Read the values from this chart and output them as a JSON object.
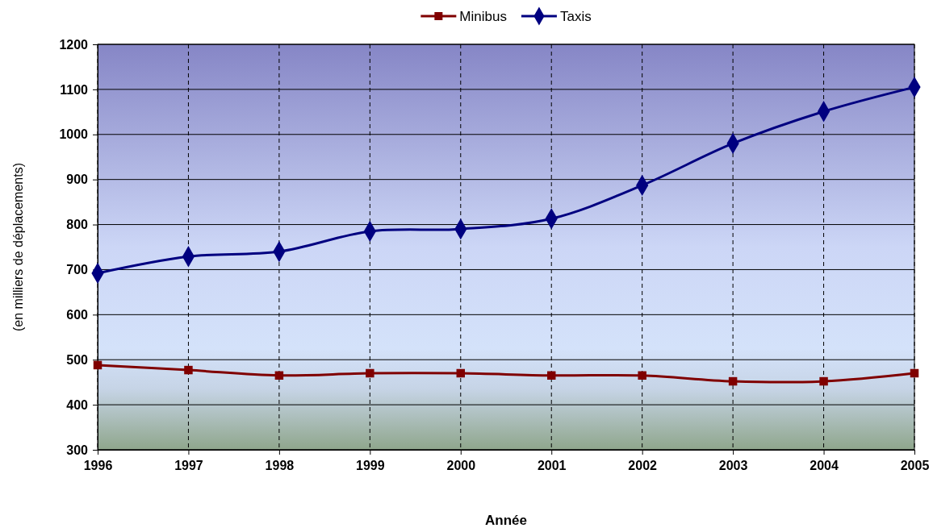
{
  "chart_data": {
    "type": "line",
    "xlabel": "Année",
    "ylabel": "(en milliers de déplacements)",
    "x": [
      1996,
      1997,
      1998,
      1999,
      2000,
      2001,
      2002,
      2003,
      2004,
      2005
    ],
    "series": [
      {
        "name": "Minibus",
        "color": "#800000",
        "marker": "square",
        "values": [
          488,
          477,
          465,
          470,
          470,
          465,
          465,
          452,
          452,
          470
        ]
      },
      {
        "name": "Taxis",
        "color": "#000080",
        "marker": "diamond",
        "values": [
          692,
          729,
          740,
          785,
          790,
          813,
          887,
          980,
          1051,
          1105
        ]
      }
    ],
    "xlim": [
      1996,
      2005
    ],
    "xticks": [
      1996,
      1997,
      1998,
      1999,
      2000,
      2001,
      2002,
      2003,
      2004,
      2005
    ],
    "ylim": [
      300,
      1200
    ],
    "yticks": [
      300,
      400,
      500,
      600,
      700,
      800,
      900,
      1000,
      1100,
      1200
    ],
    "grid": true,
    "legend": "top",
    "line_style": "solid"
  }
}
